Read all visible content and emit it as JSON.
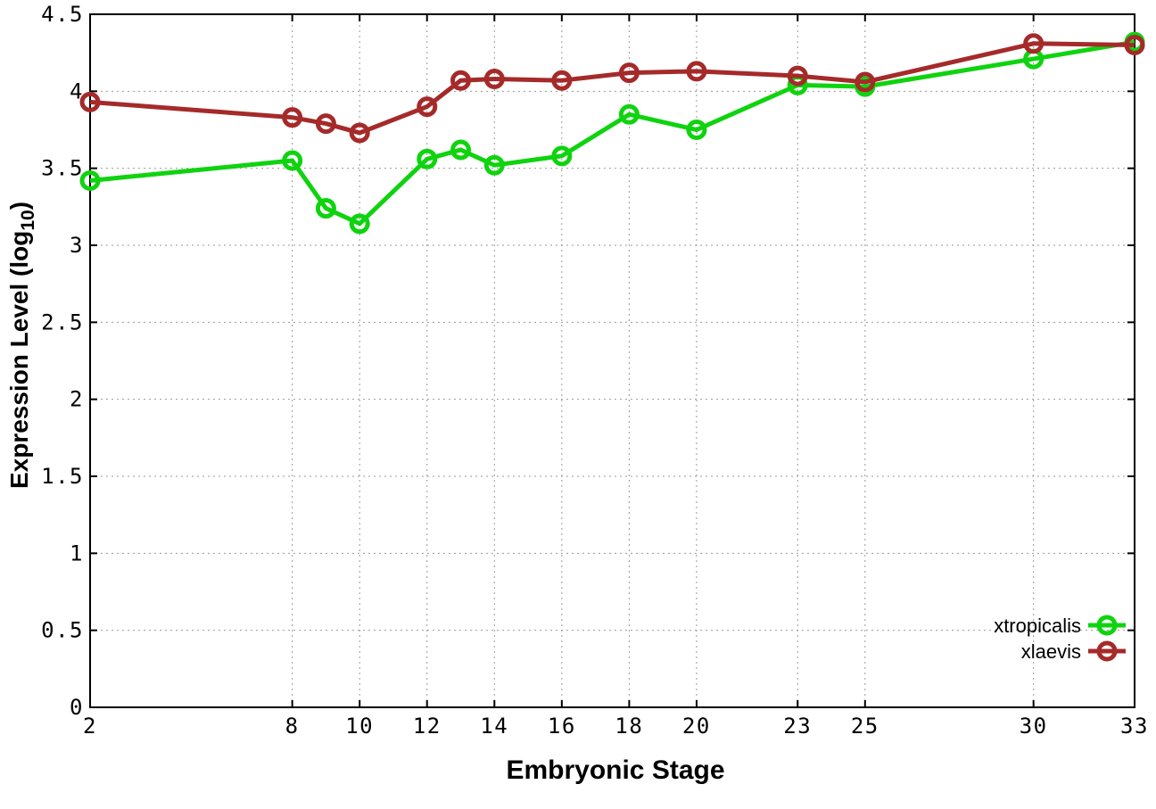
{
  "figure": {
    "background": "#ffffff"
  },
  "chart_data": {
    "type": "line",
    "title": "",
    "xlabel": "Embryonic Stage",
    "ylabel": "Expression Level (log10)",
    "ylabel_parts": {
      "prefix": "Expression Level (log",
      "sub": "10",
      "suffix": ")"
    },
    "xlim": [
      2,
      33
    ],
    "ylim": [
      0,
      4.5
    ],
    "x_ticks": [
      2,
      8,
      10,
      12,
      14,
      16,
      18,
      20,
      23,
      25,
      30,
      33
    ],
    "y_ticks": [
      "0",
      "0.5",
      "1",
      "1.5",
      "2",
      "2.5",
      "3",
      "3.5",
      "4",
      "4.5"
    ],
    "grid": true,
    "grid_style": "dotted",
    "legend_position": "inside-bottom-right",
    "x": [
      2,
      8,
      9,
      10,
      12,
      13,
      14,
      16,
      18,
      20,
      23,
      25,
      30,
      33
    ],
    "series": [
      {
        "name": "xtropicalis",
        "color": "#0fd30f",
        "marker": "open-circle",
        "values": [
          3.42,
          3.55,
          3.24,
          3.14,
          3.56,
          3.62,
          3.52,
          3.58,
          3.85,
          3.75,
          4.04,
          4.03,
          4.21,
          4.32
        ]
      },
      {
        "name": "xlaevis",
        "color": "#a52a2a",
        "marker": "open-circle",
        "values": [
          3.93,
          3.83,
          3.79,
          3.73,
          3.9,
          4.07,
          4.08,
          4.07,
          4.12,
          4.13,
          4.1,
          4.06,
          4.31,
          4.3
        ]
      }
    ],
    "colors": {
      "border": "#000000",
      "grid": "#999999",
      "text": "#000000"
    }
  }
}
